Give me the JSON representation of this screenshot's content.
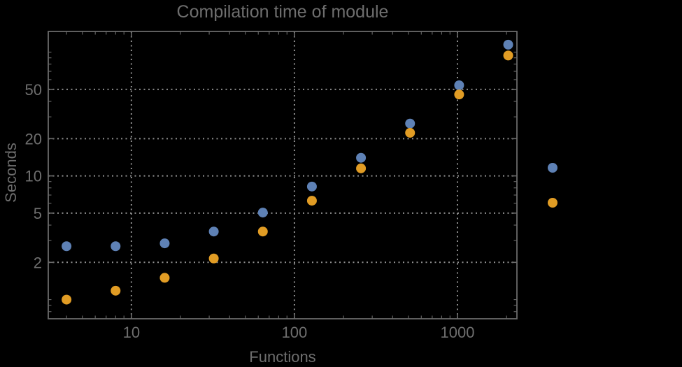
{
  "page": {
    "background": "#000000"
  },
  "style": {
    "frame_color": "#6a6a6a",
    "grid_color": "#8f8f8f",
    "text_color": "#6e6e6e",
    "series1_color": "#5E81B5",
    "series2_color": "#E19C24",
    "marker_radius": 7
  },
  "chart_data": {
    "type": "scatter",
    "title": "Compilation time of module",
    "xlabel": "Functions",
    "ylabel": "Seconds",
    "xscale": "log",
    "yscale": "log",
    "xlim": [
      3.09,
      2316
    ],
    "ylim": [
      0.7,
      147
    ],
    "grid": true,
    "grid_style": "dotted",
    "x": [
      4,
      8,
      16,
      32,
      64,
      128,
      256,
      512,
      1024,
      2048
    ],
    "series": [
      {
        "name": "series-1",
        "color": "#5E81B5",
        "values": [
          2.7,
          2.7,
          2.85,
          3.55,
          5.05,
          8.2,
          14,
          26.5,
          54,
          115
        ]
      },
      {
        "name": "series-2",
        "color": "#E19C24",
        "values": [
          1.0,
          1.18,
          1.5,
          2.15,
          3.55,
          6.3,
          11.5,
          22.3,
          45.5,
          94
        ]
      }
    ],
    "x_ticks": [
      10,
      100,
      1000
    ],
    "x_minor_ticks": [
      4,
      5,
      6,
      7,
      8,
      9,
      20,
      30,
      40,
      50,
      60,
      70,
      80,
      90,
      200,
      300,
      400,
      500,
      600,
      700,
      800,
      900,
      2000
    ],
    "y_ticks": [
      2,
      5,
      10,
      20,
      50
    ],
    "y_minor_ticks": [
      0.7,
      0.8,
      0.9,
      1,
      3,
      4,
      6,
      7,
      8,
      9,
      30,
      40,
      60,
      70,
      80,
      90,
      100
    ],
    "legend": {
      "position": "right-outside",
      "items": [
        {
          "series": "series-1",
          "marker_color": "#5E81B5",
          "label": ""
        },
        {
          "series": "series-2",
          "marker_color": "#E19C24",
          "label": ""
        }
      ]
    }
  }
}
